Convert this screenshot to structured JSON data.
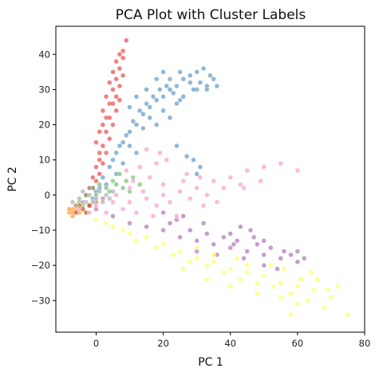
{
  "chart_data": {
    "type": "scatter",
    "title": "PCA Plot with Cluster Labels",
    "xlabel": "PC 1",
    "ylabel": "PC 2",
    "xlim": [
      -12,
      80
    ],
    "ylim": [
      -39,
      48
    ],
    "x_ticks": [
      0,
      20,
      40,
      60,
      80
    ],
    "y_ticks": [
      -30,
      -20,
      -10,
      0,
      10,
      20,
      30,
      40
    ],
    "x_tick_labels": [
      "0",
      "20",
      "40",
      "60",
      "80"
    ],
    "y_tick_labels": [
      "−30",
      "−20",
      "−10",
      "0",
      "10",
      "20",
      "30",
      "40"
    ],
    "grid": false,
    "legend": false,
    "point_alpha": 0.55,
    "series": [
      {
        "color": "#e41a1c",
        "points": [
          [
            -2,
            -3
          ],
          [
            -1,
            2
          ],
          [
            0,
            8
          ],
          [
            1,
            12
          ],
          [
            1,
            18
          ],
          [
            2,
            24
          ],
          [
            3,
            28
          ],
          [
            4,
            32
          ],
          [
            5,
            35
          ],
          [
            6,
            38
          ],
          [
            7,
            40
          ],
          [
            8,
            41
          ],
          [
            9,
            44
          ],
          [
            -1,
            5
          ],
          [
            0,
            15
          ],
          [
            2,
            20
          ],
          [
            3,
            22
          ],
          [
            4,
            26
          ],
          [
            5,
            30
          ],
          [
            6,
            33
          ],
          [
            7,
            36
          ],
          [
            8,
            39
          ],
          [
            -3,
            0
          ],
          [
            1,
            10
          ],
          [
            2,
            14
          ],
          [
            3,
            18
          ],
          [
            4,
            22
          ],
          [
            5,
            26
          ],
          [
            6,
            28
          ],
          [
            7,
            31
          ],
          [
            8,
            34
          ],
          [
            0,
            4
          ],
          [
            -2,
            2
          ],
          [
            1,
            6
          ],
          [
            2,
            9
          ],
          [
            3,
            12
          ],
          [
            4,
            16
          ],
          [
            5,
            20
          ],
          [
            6,
            24
          ],
          [
            7,
            27
          ]
        ]
      },
      {
        "color": "#377eb8",
        "points": [
          [
            2,
            5
          ],
          [
            4,
            8
          ],
          [
            6,
            12
          ],
          [
            8,
            15
          ],
          [
            10,
            18
          ],
          [
            12,
            20
          ],
          [
            14,
            23
          ],
          [
            16,
            25
          ],
          [
            18,
            27
          ],
          [
            20,
            28
          ],
          [
            22,
            30
          ],
          [
            24,
            31
          ],
          [
            26,
            33
          ],
          [
            28,
            34
          ],
          [
            30,
            35
          ],
          [
            32,
            36
          ],
          [
            34,
            34
          ],
          [
            10,
            25
          ],
          [
            12,
            28
          ],
          [
            15,
            30
          ],
          [
            18,
            33
          ],
          [
            20,
            35
          ],
          [
            22,
            33
          ],
          [
            25,
            35
          ],
          [
            28,
            32
          ],
          [
            30,
            30
          ],
          [
            5,
            10
          ],
          [
            7,
            14
          ],
          [
            9,
            17
          ],
          [
            11,
            21
          ],
          [
            13,
            24
          ],
          [
            15,
            26
          ],
          [
            17,
            28
          ],
          [
            19,
            30
          ],
          [
            21,
            31
          ],
          [
            23,
            29
          ],
          [
            24,
            26
          ],
          [
            26,
            28
          ],
          [
            29,
            30
          ],
          [
            31,
            32
          ],
          [
            33,
            31
          ],
          [
            16,
            22
          ],
          [
            14,
            19
          ],
          [
            20,
            24
          ],
          [
            25,
            27
          ],
          [
            22,
            22
          ],
          [
            18,
            20
          ],
          [
            10,
            14
          ],
          [
            8,
            9
          ],
          [
            12,
            12
          ],
          [
            3,
            3
          ],
          [
            6,
            6
          ],
          [
            -1,
            -1
          ],
          [
            0,
            1
          ],
          [
            1,
            2
          ],
          [
            27,
            11
          ],
          [
            29,
            10
          ],
          [
            31,
            8
          ],
          [
            30,
            6
          ],
          [
            24,
            14
          ],
          [
            33,
            30
          ],
          [
            35,
            33
          ],
          [
            36,
            31
          ]
        ]
      },
      {
        "color": "#4daf4a",
        "points": [
          [
            -3,
            0
          ],
          [
            -1,
            2
          ],
          [
            1,
            3
          ],
          [
            3,
            2
          ],
          [
            5,
            4
          ],
          [
            7,
            6
          ],
          [
            9,
            4
          ],
          [
            11,
            5
          ],
          [
            13,
            3
          ],
          [
            -5,
            -2
          ],
          [
            -4,
            -3
          ],
          [
            0,
            0
          ],
          [
            2,
            -1
          ],
          [
            4,
            1
          ],
          [
            6,
            3
          ],
          [
            8,
            2
          ],
          [
            10,
            1
          ]
        ]
      },
      {
        "color": "#984ea3",
        "points": [
          [
            0,
            -4
          ],
          [
            5,
            -6
          ],
          [
            10,
            -8
          ],
          [
            15,
            -9
          ],
          [
            20,
            -10
          ],
          [
            25,
            -12
          ],
          [
            30,
            -13
          ],
          [
            35,
            -14
          ],
          [
            40,
            -15
          ],
          [
            45,
            -16
          ],
          [
            50,
            -17
          ],
          [
            55,
            -18
          ],
          [
            60,
            -19
          ],
          [
            38,
            -12
          ],
          [
            42,
            -13
          ],
          [
            48,
            -14
          ],
          [
            52,
            -15
          ],
          [
            56,
            -16
          ],
          [
            44,
            -18
          ],
          [
            50,
            -20
          ],
          [
            54,
            -21
          ],
          [
            33,
            -11
          ],
          [
            28,
            -10
          ],
          [
            22,
            -8
          ],
          [
            24,
            -7
          ],
          [
            46,
            -10
          ],
          [
            40,
            -11
          ],
          [
            58,
            -17
          ],
          [
            36,
            -17
          ],
          [
            30,
            -16
          ],
          [
            20,
            -5
          ],
          [
            26,
            -6
          ],
          [
            32,
            -8
          ],
          [
            43,
            -9
          ],
          [
            60,
            -16
          ],
          [
            62,
            -18
          ],
          [
            50,
            -13
          ],
          [
            47,
            -12
          ],
          [
            41,
            -14
          ]
        ]
      },
      {
        "color": "#ff7f00",
        "points": [
          [
            -8,
            -5
          ],
          [
            -7,
            -4
          ],
          [
            -6,
            -5
          ],
          [
            -5,
            -3
          ],
          [
            -7,
            -6
          ],
          [
            -6,
            -4
          ],
          [
            -8,
            -4
          ],
          [
            -5,
            -5
          ],
          [
            -4,
            -4
          ],
          [
            -3,
            -5
          ],
          [
            -6,
            -3
          ],
          [
            -7,
            -5
          ]
        ]
      },
      {
        "color": "#ffff33",
        "points": [
          [
            0,
            -7
          ],
          [
            5,
            -9
          ],
          [
            10,
            -11
          ],
          [
            15,
            -12
          ],
          [
            20,
            -14
          ],
          [
            25,
            -16
          ],
          [
            30,
            -18
          ],
          [
            35,
            -19
          ],
          [
            40,
            -21
          ],
          [
            45,
            -22
          ],
          [
            50,
            -23
          ],
          [
            55,
            -25
          ],
          [
            60,
            -26
          ],
          [
            65,
            -27
          ],
          [
            70,
            -29
          ],
          [
            75,
            -34
          ],
          [
            68,
            -32
          ],
          [
            63,
            -30
          ],
          [
            58,
            -28
          ],
          [
            53,
            -26
          ],
          [
            48,
            -25
          ],
          [
            43,
            -24
          ],
          [
            38,
            -22
          ],
          [
            33,
            -20
          ],
          [
            28,
            -19
          ],
          [
            23,
            -17
          ],
          [
            18,
            -15
          ],
          [
            60,
            -31
          ],
          [
            66,
            -24
          ],
          [
            72,
            -26
          ],
          [
            64,
            -22
          ],
          [
            52,
            -20
          ],
          [
            42,
            -18
          ],
          [
            30,
            -15
          ],
          [
            35,
            -17
          ],
          [
            56,
            -21
          ],
          [
            45,
            -20
          ],
          [
            48,
            -28
          ],
          [
            55,
            -29
          ],
          [
            61,
            -24
          ],
          [
            69,
            -27
          ],
          [
            12,
            -13
          ],
          [
            8,
            -10
          ],
          [
            3,
            -8
          ],
          [
            26,
            -21
          ],
          [
            33,
            -24
          ],
          [
            40,
            -26
          ],
          [
            58,
            -34
          ]
        ]
      },
      {
        "color": "#a65628",
        "points": [
          [
            -6,
            -5
          ],
          [
            -4,
            -4
          ],
          [
            -2,
            -3
          ],
          [
            0,
            -2
          ],
          [
            -5,
            -3
          ],
          [
            -3,
            -5
          ]
        ]
      },
      {
        "color": "#f781bf",
        "points": [
          [
            -5,
            -4
          ],
          [
            0,
            -3
          ],
          [
            5,
            -2
          ],
          [
            10,
            -2
          ],
          [
            15,
            -1
          ],
          [
            20,
            0
          ],
          [
            25,
            1
          ],
          [
            30,
            2
          ],
          [
            35,
            4
          ],
          [
            40,
            5
          ],
          [
            45,
            7
          ],
          [
            50,
            8
          ],
          [
            55,
            9
          ],
          [
            60,
            7
          ],
          [
            8,
            -4
          ],
          [
            12,
            -5
          ],
          [
            18,
            -3
          ],
          [
            22,
            -2
          ],
          [
            28,
            -1
          ],
          [
            33,
            0
          ],
          [
            38,
            2
          ],
          [
            43,
            3
          ],
          [
            14,
            1
          ],
          [
            20,
            3
          ],
          [
            26,
            4
          ],
          [
            32,
            -3
          ],
          [
            36,
            -2
          ],
          [
            24,
            -6
          ],
          [
            10,
            2
          ],
          [
            6,
            0
          ],
          [
            2,
            -1
          ],
          [
            16,
            5
          ],
          [
            13,
            8
          ],
          [
            18,
            9
          ],
          [
            21,
            10
          ],
          [
            15,
            13
          ],
          [
            19,
            12
          ],
          [
            9,
            7
          ],
          [
            11,
            4
          ],
          [
            27,
            6
          ],
          [
            31,
            5
          ],
          [
            44,
            2
          ],
          [
            49,
            4
          ],
          [
            17,
            -6
          ],
          [
            3,
            -5
          ],
          [
            -2,
            -5
          ]
        ]
      },
      {
        "color": "#999999",
        "points": [
          [
            -6,
            -3
          ],
          [
            -5,
            -1
          ],
          [
            -4,
            1
          ],
          [
            -3,
            -2
          ],
          [
            -2,
            0
          ],
          [
            -1,
            -2
          ],
          [
            0,
            -1
          ],
          [
            1,
            1
          ],
          [
            2,
            -2
          ],
          [
            -7,
            -2
          ],
          [
            3,
            0
          ],
          [
            4,
            -1
          ],
          [
            5,
            1
          ],
          [
            -4,
            -2
          ],
          [
            -2,
            2
          ]
        ]
      }
    ]
  }
}
